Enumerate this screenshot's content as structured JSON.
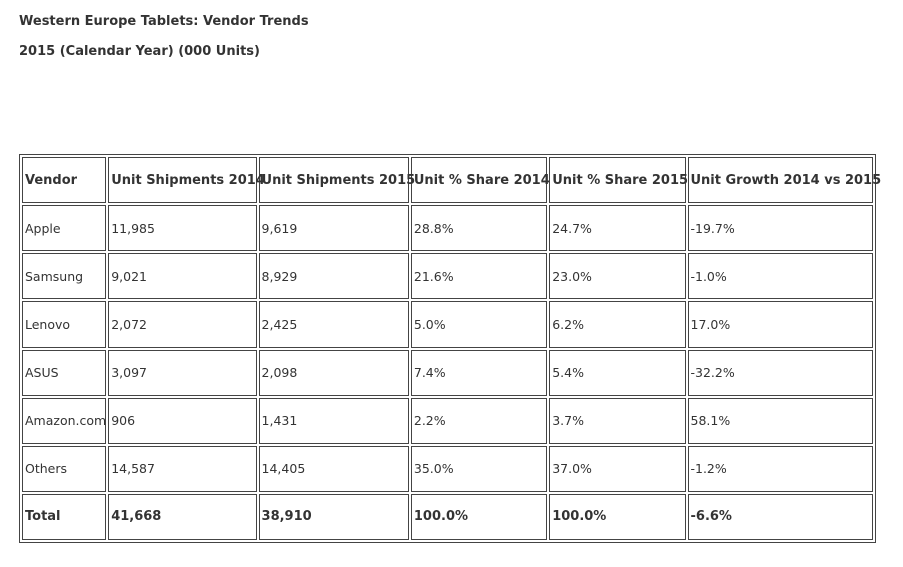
{
  "page": {
    "title": "Western Europe Tablets: Vendor Trends",
    "subtitle": "2015 (Calendar Year) (000 Units)"
  },
  "table": {
    "headers": [
      "Vendor",
      "Unit Shipments 2014",
      "Unit Shipments 2015",
      "Unit % Share 2014",
      "Unit % Share 2015",
      "Unit Growth 2014 vs 2015"
    ],
    "rows": [
      [
        "Apple",
        "11,985",
        "9,619",
        "28.8%",
        "24.7%",
        "-19.7%"
      ],
      [
        "Samsung",
        "9,021",
        "8,929",
        "21.6%",
        "23.0%",
        "-1.0%"
      ],
      [
        "Lenovo",
        "2,072",
        "2,425",
        "5.0%",
        "6.2%",
        "17.0%"
      ],
      [
        "ASUS",
        "3,097",
        "2,098",
        "7.4%",
        "5.4%",
        "-32.2%"
      ],
      [
        "Amazon.com",
        "906",
        "1,431",
        "2.2%",
        "3.7%",
        "58.1%"
      ],
      [
        "Others",
        "14,587",
        "14,405",
        "35.0%",
        "37.0%",
        "-1.2%"
      ]
    ],
    "total": [
      "Total",
      "41,668",
      "38,910",
      "100.0%",
      "100.0%",
      "-6.6%"
    ]
  }
}
